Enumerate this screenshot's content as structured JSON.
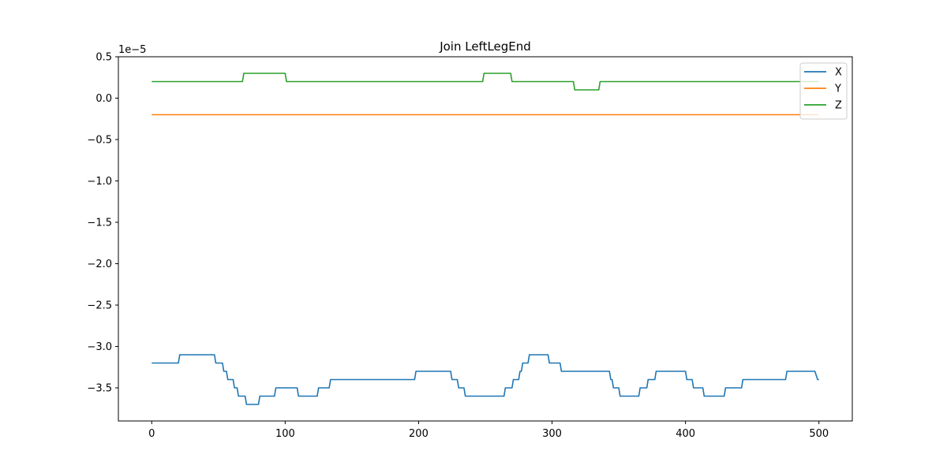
{
  "chart_data": {
    "type": "line",
    "title": "Join LeftLegEnd",
    "xlabel": "",
    "ylabel": "",
    "y_offset_label": "1e−5",
    "xlim": [
      -25,
      525
    ],
    "ylim": [
      -3.9,
      0.5
    ],
    "x_ticks": [
      0,
      100,
      200,
      300,
      400,
      500
    ],
    "x_tick_labels": [
      "0",
      "100",
      "200",
      "300",
      "400",
      "500"
    ],
    "y_ticks": [
      0.5,
      0.0,
      -0.5,
      -1.0,
      -1.5,
      -2.0,
      -2.5,
      -3.0,
      -3.5
    ],
    "y_tick_labels": [
      "0.5",
      "0.0",
      "−0.5",
      "−1.0",
      "−1.5",
      "−2.0",
      "−2.5",
      "−3.0",
      "−3.5"
    ],
    "grid": false,
    "legend_position": "top-right",
    "series": [
      {
        "name": "X",
        "color": "#1f77b4",
        "points": [
          [
            0,
            -3.2
          ],
          [
            20,
            -3.2
          ],
          [
            21,
            -3.1
          ],
          [
            47,
            -3.1
          ],
          [
            48,
            -3.2
          ],
          [
            53,
            -3.2
          ],
          [
            54,
            -3.3
          ],
          [
            56,
            -3.3
          ],
          [
            57,
            -3.4
          ],
          [
            61,
            -3.4
          ],
          [
            62,
            -3.5
          ],
          [
            64,
            -3.5
          ],
          [
            65,
            -3.6
          ],
          [
            70,
            -3.6
          ],
          [
            71,
            -3.7
          ],
          [
            80,
            -3.7
          ],
          [
            81,
            -3.6
          ],
          [
            92,
            -3.6
          ],
          [
            93,
            -3.5
          ],
          [
            109,
            -3.5
          ],
          [
            110,
            -3.6
          ],
          [
            124,
            -3.6
          ],
          [
            125,
            -3.5
          ],
          [
            133,
            -3.5
          ],
          [
            134,
            -3.4
          ],
          [
            197,
            -3.4
          ],
          [
            198,
            -3.3
          ],
          [
            224,
            -3.3
          ],
          [
            225,
            -3.4
          ],
          [
            229,
            -3.4
          ],
          [
            230,
            -3.5
          ],
          [
            234,
            -3.5
          ],
          [
            235,
            -3.6
          ],
          [
            264,
            -3.6
          ],
          [
            265,
            -3.5
          ],
          [
            270,
            -3.5
          ],
          [
            271,
            -3.4
          ],
          [
            275,
            -3.4
          ],
          [
            276,
            -3.3
          ],
          [
            277,
            -3.3
          ],
          [
            278,
            -3.2
          ],
          [
            282,
            -3.2
          ],
          [
            283,
            -3.1
          ],
          [
            297,
            -3.1
          ],
          [
            298,
            -3.2
          ],
          [
            306,
            -3.2
          ],
          [
            307,
            -3.3
          ],
          [
            343,
            -3.3
          ],
          [
            344,
            -3.4
          ],
          [
            345,
            -3.4
          ],
          [
            346,
            -3.5
          ],
          [
            350,
            -3.5
          ],
          [
            351,
            -3.6
          ],
          [
            365,
            -3.6
          ],
          [
            366,
            -3.5
          ],
          [
            371,
            -3.5
          ],
          [
            372,
            -3.4
          ],
          [
            377,
            -3.4
          ],
          [
            378,
            -3.3
          ],
          [
            400,
            -3.3
          ],
          [
            401,
            -3.4
          ],
          [
            405,
            -3.4
          ],
          [
            406,
            -3.5
          ],
          [
            413,
            -3.5
          ],
          [
            414,
            -3.6
          ],
          [
            429,
            -3.6
          ],
          [
            430,
            -3.5
          ],
          [
            442,
            -3.5
          ],
          [
            443,
            -3.4
          ],
          [
            475,
            -3.4
          ],
          [
            476,
            -3.3
          ],
          [
            497,
            -3.3
          ],
          [
            499,
            -3.4
          ],
          [
            500,
            -3.4
          ]
        ]
      },
      {
        "name": "Y",
        "color": "#ff7f0e",
        "points": [
          [
            0,
            -0.2
          ],
          [
            500,
            -0.2
          ]
        ]
      },
      {
        "name": "Z",
        "color": "#2ca02c",
        "points": [
          [
            0,
            0.2
          ],
          [
            68,
            0.2
          ],
          [
            69,
            0.3
          ],
          [
            100,
            0.3
          ],
          [
            101,
            0.2
          ],
          [
            248,
            0.2
          ],
          [
            249,
            0.3
          ],
          [
            269,
            0.3
          ],
          [
            270,
            0.2
          ],
          [
            316,
            0.2
          ],
          [
            317,
            0.1
          ],
          [
            335,
            0.1
          ],
          [
            336,
            0.2
          ],
          [
            500,
            0.2
          ]
        ]
      }
    ]
  }
}
